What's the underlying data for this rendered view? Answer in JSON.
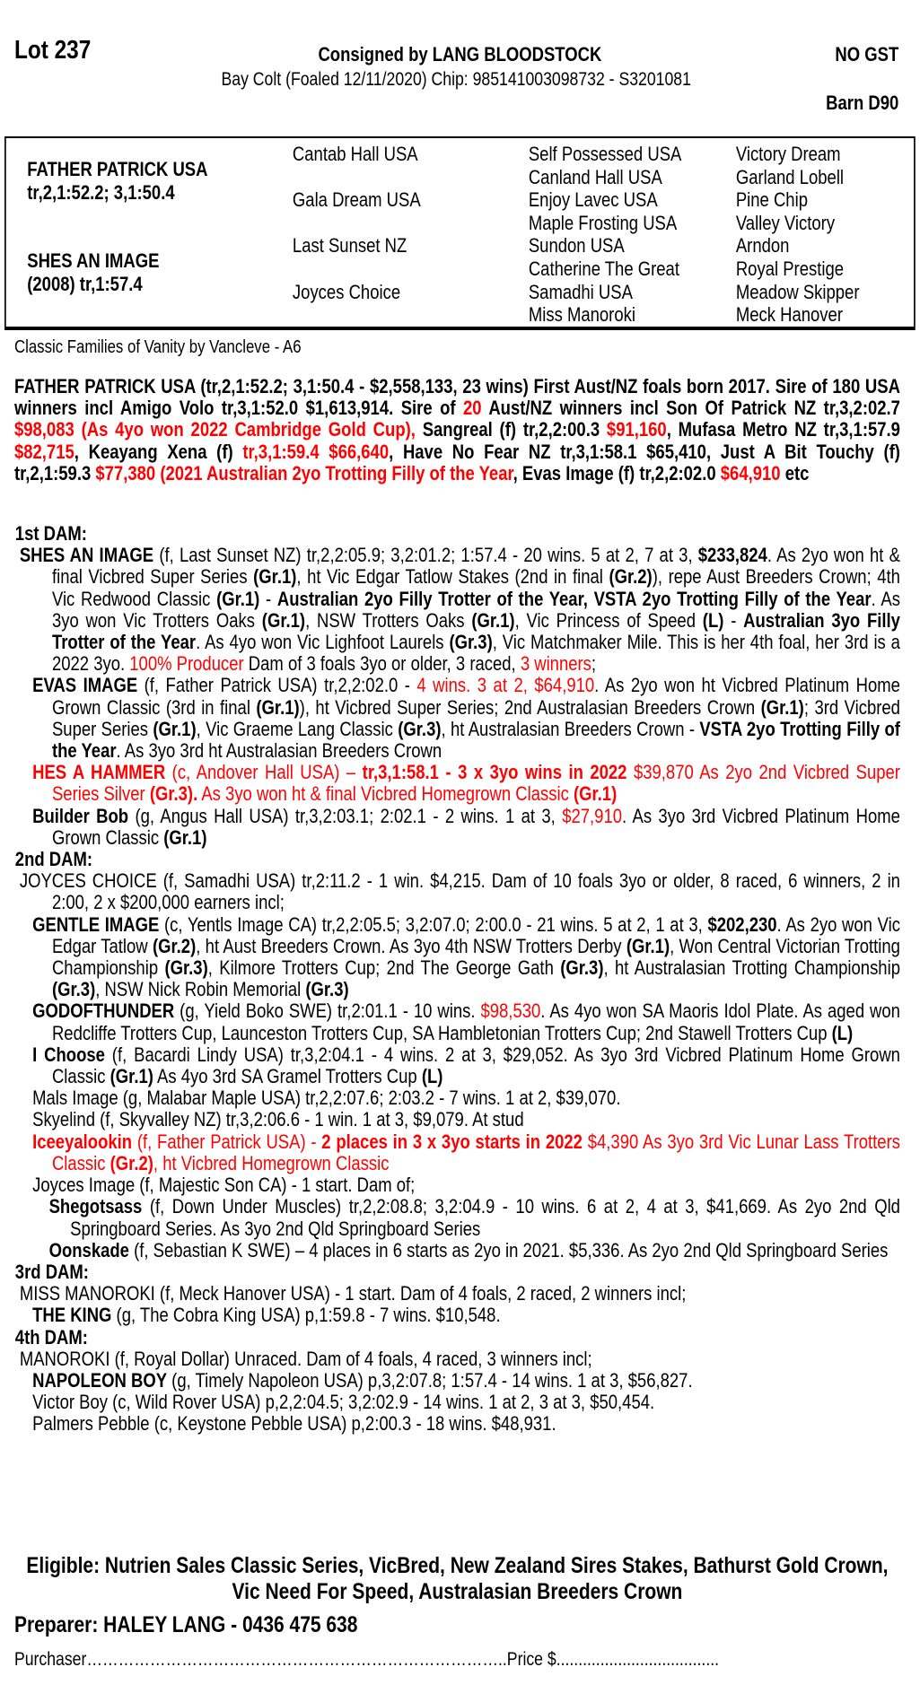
{
  "colors": {
    "red": "#ff0000",
    "text": "#000000"
  },
  "header": {
    "lot": "Lot 237",
    "consigned": "Consigned by LANG BLOODSTOCK",
    "gst": "NO GST",
    "description": "Bay Colt (Foaled 12/11/2020) Chip: 985141003098732 - S3201081",
    "barn": "Barn D90"
  },
  "pedigree": {
    "sire_name": "FATHER PATRICK USA",
    "sire_record": "tr,2,1:52.2; 3,1:50.4",
    "dam_name": "SHES AN IMAGE",
    "dam_record": "(2008) tr,1:57.4",
    "grandparents": [
      "Cantab Hall USA",
      "Gala Dream USA",
      "Last Sunset NZ",
      "Joyces Choice"
    ],
    "great_grandparents": [
      "Self Possessed USA",
      "Canland Hall USA",
      "Enjoy Lavec USA",
      "Maple Frosting USA",
      "Sundon USA",
      "Catherine The Great",
      "Samadhi USA",
      "Miss Manoroki"
    ],
    "great_great_grandparents": [
      "Victory Dream",
      "Garland Lobell",
      "Pine Chip",
      "Valley Victory",
      "Arndon",
      "Royal Prestige",
      "Meadow Skipper",
      "Meck Hanover"
    ]
  },
  "family": "Classic Families of Vanity by Vancleve - A6",
  "sire_paragraph": [
    {
      "t": "FATHER PATRICK USA (tr,2,1:52.2; 3,1:50.4 - $2,558,133, 23 wins) First Aust/NZ foals born 2017. Sire of 180 USA winners incl Amigo Volo tr,3,1:52.0 $1,613,914. Sire of ",
      "s": "b"
    },
    {
      "t": "20",
      "s": "br"
    },
    {
      "t": " Aust/NZ winners incl Son Of Patrick NZ tr,3,2:02.7 ",
      "s": "b"
    },
    {
      "t": "$98,083 (As 4yo won 2022 Cambridge Gold Cup),",
      "s": "br"
    },
    {
      "t": " Sangreal (f) tr,2,2:00.3 ",
      "s": "b"
    },
    {
      "t": "$91,160",
      "s": "br"
    },
    {
      "t": ", Mufasa Metro NZ tr,3,1:57.9 ",
      "s": "b"
    },
    {
      "t": "$82,715",
      "s": "br"
    },
    {
      "t": ", Keayang Xena (f) ",
      "s": "b"
    },
    {
      "t": "tr,3,1:59.4 $66,640",
      "s": "br"
    },
    {
      "t": ", Have No Fear NZ tr,3,1:58.1 $65,410, Just A Bit Touchy (f) tr,2,1:59.3 ",
      "s": "b"
    },
    {
      "t": "$77,380 (2021 Australian 2yo Trotting Filly of the Year",
      "s": "br"
    },
    {
      "t": ", Evas Image (f) tr,2,2:02.0 ",
      "s": "b"
    },
    {
      "t": "$64,910",
      "s": "br"
    },
    {
      "t": " etc",
      "s": "b"
    }
  ],
  "sections": [
    {
      "heading": "1st DAM:",
      "entries": [
        {
          "type": "dam",
          "segs": [
            {
              "t": "SHES AN IMAGE",
              "s": "b"
            },
            {
              "t": " (f, Last Sunset NZ) tr,2,2:05.9; 3,2:01.2; 1:57.4 - 20 wins. 5 at 2, 7 at 3, ",
              "s": ""
            },
            {
              "t": "$233,824",
              "s": "b"
            },
            {
              "t": ". As 2yo won ht & final Vicbred Super Series ",
              "s": ""
            },
            {
              "t": "(Gr.1)",
              "s": "b"
            },
            {
              "t": ", ht Vic Edgar Tatlow Stakes (2nd in final ",
              "s": ""
            },
            {
              "t": "(Gr.2)",
              "s": "b"
            },
            {
              "t": "), repe Aust Breeders Crown; 4th Vic Redwood Classic ",
              "s": ""
            },
            {
              "t": "(Gr.1)",
              "s": "b"
            },
            {
              "t": " - ",
              "s": ""
            },
            {
              "t": "Australian 2yo Filly Trotter of the Year, VSTA 2yo Trotting Filly of the Year",
              "s": "b"
            },
            {
              "t": ". As 3yo won Vic Trotters Oaks ",
              "s": ""
            },
            {
              "t": "(Gr.1)",
              "s": "b"
            },
            {
              "t": ", NSW Trotters Oaks ",
              "s": ""
            },
            {
              "t": "(Gr.1)",
              "s": "b"
            },
            {
              "t": ", Vic Princess of Speed ",
              "s": ""
            },
            {
              "t": "(L)",
              "s": "b"
            },
            {
              "t": " - ",
              "s": ""
            },
            {
              "t": "Australian 3yo Filly Trotter of the Year",
              "s": "b"
            },
            {
              "t": ". As 4yo won Vic Lighfoot Laurels ",
              "s": ""
            },
            {
              "t": "(Gr.3)",
              "s": "b"
            },
            {
              "t": ", Vic Matchmaker Mile. This is her 4th foal, her 3rd is a 2022 3yo. ",
              "s": ""
            },
            {
              "t": "100% Producer",
              "s": "r"
            },
            {
              "t": " Dam of 3 foals 3yo or older, 3 raced, ",
              "s": ""
            },
            {
              "t": "3 winners",
              "s": "r"
            },
            {
              "t": ";",
              "s": ""
            }
          ]
        },
        {
          "type": "foal",
          "segs": [
            {
              "t": "EVAS IMAGE",
              "s": "b"
            },
            {
              "t": " (f, Father Patrick USA) tr,2,2:02.0 - ",
              "s": ""
            },
            {
              "t": "4 wins. 3 at 2, $64,910",
              "s": "r"
            },
            {
              "t": ". As 2yo won ht Vicbred Platinum Home Grown Classic (3rd in final ",
              "s": ""
            },
            {
              "t": "(Gr.1)",
              "s": "b"
            },
            {
              "t": "), ht Vicbred Super Series; 2nd Australasian Breeders Crown ",
              "s": ""
            },
            {
              "t": "(Gr.1)",
              "s": "b"
            },
            {
              "t": "; 3rd Vicbred Super Series ",
              "s": ""
            },
            {
              "t": "(Gr.1)",
              "s": "b"
            },
            {
              "t": ", Vic Graeme Lang Classic ",
              "s": ""
            },
            {
              "t": "(Gr.3)",
              "s": "b"
            },
            {
              "t": ", ht Australasian Breeders Crown - ",
              "s": ""
            },
            {
              "t": "VSTA 2yo Trotting Filly of the Year",
              "s": "b"
            },
            {
              "t": ". As 3yo 3rd ht Australasian Breeders Crown",
              "s": ""
            }
          ]
        },
        {
          "type": "foal",
          "segs": [
            {
              "t": "HES A HAMMER",
              "s": "br"
            },
            {
              "t": " (c, Andover Hall USA) – ",
              "s": "r"
            },
            {
              "t": "tr,3,1:58.1 - 3 x 3yo wins in 2022",
              "s": "br"
            },
            {
              "t": " $39,870 As 2yo 2nd Vicbred Super Series Silver ",
              "s": "r"
            },
            {
              "t": "(Gr.3).",
              "s": "br"
            },
            {
              "t": " As 3yo won ht & final Vicbred Homegrown Classic ",
              "s": "r"
            },
            {
              "t": "(Gr.1)",
              "s": "br"
            }
          ]
        },
        {
          "type": "foal",
          "segs": [
            {
              "t": "Builder Bob",
              "s": "b"
            },
            {
              "t": " (g, Angus Hall USA) tr,3,2:03.1; 2:02.1 - 2 wins. 1 at 3, ",
              "s": ""
            },
            {
              "t": "$27,910",
              "s": "r"
            },
            {
              "t": ". As 3yo 3rd Vicbred Platinum Home Grown Classic ",
              "s": ""
            },
            {
              "t": "(Gr.1)",
              "s": "b"
            }
          ]
        }
      ]
    },
    {
      "heading": "2nd DAM:",
      "entries": [
        {
          "type": "dam",
          "segs": [
            {
              "t": "JOYCES CHOICE (f, Samadhi USA) tr,2:11.2 - 1 win. $4,215. Dam of 10 foals 3yo or older, 8 raced, 6 winners, 2 in 2:00, 2 x $200,000 earners incl;",
              "s": ""
            }
          ]
        },
        {
          "type": "foal",
          "segs": [
            {
              "t": "GENTLE IMAGE",
              "s": "b"
            },
            {
              "t": " (c, Yentls Image CA) tr,2,2:05.5; 3,2:07.0; 2:00.0 - 21 wins. 5 at 2, 1 at 3, ",
              "s": ""
            },
            {
              "t": "$202,230",
              "s": "b"
            },
            {
              "t": ". As 2yo won Vic Edgar Tatlow ",
              "s": ""
            },
            {
              "t": "(Gr.2)",
              "s": "b"
            },
            {
              "t": ", ht Aust Breeders Crown. As 3yo 4th NSW Trotters Derby ",
              "s": ""
            },
            {
              "t": "(Gr.1)",
              "s": "b"
            },
            {
              "t": ", Won Central Victorian Trotting Championship ",
              "s": ""
            },
            {
              "t": "(Gr.3)",
              "s": "b"
            },
            {
              "t": ", Kilmore Trotters Cup; 2nd The George Gath ",
              "s": ""
            },
            {
              "t": "(Gr.3)",
              "s": "b"
            },
            {
              "t": ", ht Australasian Trotting Championship ",
              "s": ""
            },
            {
              "t": "(Gr.3)",
              "s": "b"
            },
            {
              "t": ", NSW Nick Robin Memorial ",
              "s": ""
            },
            {
              "t": "(Gr.3)",
              "s": "b"
            }
          ]
        },
        {
          "type": "foal",
          "segs": [
            {
              "t": "GODOFTHUNDER",
              "s": "b"
            },
            {
              "t": " (g, Yield Boko SWE) tr,2:01.1 - 10 wins. ",
              "s": ""
            },
            {
              "t": "$98,530",
              "s": "r"
            },
            {
              "t": ". As 4yo won SA Maoris Idol Plate. As aged won Redcliffe Trotters Cup, Launceston Trotters Cup, SA Hambletonian Trotters Cup; 2nd Stawell Trotters Cup ",
              "s": ""
            },
            {
              "t": "(L)",
              "s": "b"
            }
          ]
        },
        {
          "type": "foal",
          "segs": [
            {
              "t": "I Choose",
              "s": "b"
            },
            {
              "t": " (f, Bacardi Lindy USA) tr,3,2:04.1 - 4 wins. 2 at 3, $29,052. As 3yo 3rd Vicbred Platinum Home Grown Classic ",
              "s": ""
            },
            {
              "t": "(Gr.1)",
              "s": "b"
            },
            {
              "t": " As 4yo 3rd SA Gramel Trotters Cup ",
              "s": ""
            },
            {
              "t": "(L)",
              "s": "b"
            }
          ]
        },
        {
          "type": "foal",
          "segs": [
            {
              "t": "Mals Image (g, Malabar Maple USA) tr,2,2:07.6; 2:03.2 - 7 wins. 1 at 2, $39,070.",
              "s": ""
            }
          ]
        },
        {
          "type": "foal",
          "segs": [
            {
              "t": "Skyelind (f, Skyvalley NZ) tr,3,2:06.6 - 1 win. 1 at 3, $9,079. At stud",
              "s": ""
            }
          ]
        },
        {
          "type": "foal",
          "segs": [
            {
              "t": "Iceeyalookin",
              "s": "br"
            },
            {
              "t": " (f, Father Patrick USA) - ",
              "s": "r"
            },
            {
              "t": "2 places in 3 x 3yo starts in 2022",
              "s": "br"
            },
            {
              "t": " $4,390 As 3yo 3rd Vic Lunar Lass Trotters Classic ",
              "s": "r"
            },
            {
              "t": "(Gr.2)",
              "s": "br"
            },
            {
              "t": ", ht Vicbred Homegrown Classic",
              "s": "r"
            }
          ]
        },
        {
          "type": "foal",
          "segs": [
            {
              "t": "Joyces Image (f, Majestic Son CA) - 1 start. Dam of;",
              "s": ""
            }
          ]
        },
        {
          "type": "sub",
          "segs": [
            {
              "t": "Shegotsass",
              "s": "b"
            },
            {
              "t": " (f, Down Under Muscles) tr,2,2:08.8; 3,2:04.9 - 10 wins. 6 at 2, 4 at 3, $41,669. As 2yo 2nd Qld Springboard Series. As 3yo 2nd Qld Springboard Series",
              "s": ""
            }
          ]
        },
        {
          "type": "sub",
          "segs": [
            {
              "t": "Oonskade",
              "s": "b"
            },
            {
              "t": " (f, Sebastian K SWE) – 4 places in 6 starts as 2yo in 2021. $5,336. As 2yo 2nd Qld Springboard Series",
              "s": ""
            }
          ]
        }
      ]
    },
    {
      "heading": "3rd DAM:",
      "entries": [
        {
          "type": "dam",
          "segs": [
            {
              "t": "MISS MANOROKI (f, Meck Hanover USA) - 1 start. Dam of 4 foals, 2 raced, 2 winners incl;",
              "s": ""
            }
          ]
        },
        {
          "type": "foal",
          "segs": [
            {
              "t": "THE KING",
              "s": "b"
            },
            {
              "t": " (g, The Cobra King USA) p,1:59.8 - 7 wins. $10,548.",
              "s": ""
            }
          ]
        }
      ]
    },
    {
      "heading": "4th DAM:",
      "entries": [
        {
          "type": "dam",
          "segs": [
            {
              "t": "MANOROKI (f, Royal Dollar) Unraced. Dam of 4 foals, 4 raced, 3 winners incl;",
              "s": ""
            }
          ]
        },
        {
          "type": "foal",
          "segs": [
            {
              "t": "NAPOLEON BOY",
              "s": "b"
            },
            {
              "t": " (g, Timely Napoleon USA) p,3,2:07.8; 1:57.4 - 14 wins. 1 at 3, $56,827.",
              "s": ""
            }
          ]
        },
        {
          "type": "foal",
          "segs": [
            {
              "t": "Victor Boy (c, Wild Rover USA) p,2,2:04.5; 3,2:02.9 - 14 wins. 1 at 2, 3 at 3, $50,454.",
              "s": ""
            }
          ]
        },
        {
          "type": "foal",
          "segs": [
            {
              "t": "Palmers Pebble (c, Keystone Pebble USA) p,2:00.3 - 18 wins. $48,931.",
              "s": ""
            }
          ]
        }
      ]
    }
  ],
  "footer": {
    "eligible": "Eligible: Nutrien Sales Classic Series, VicBred, New Zealand Sires Stakes, Bathurst Gold Crown, Vic Need For Speed, Australasian Breeders Crown",
    "preparer": "Preparer: HALEY LANG - 0436 475 638",
    "purchaser": "Purchaser……………………………………………………………………..Price $....................................."
  }
}
